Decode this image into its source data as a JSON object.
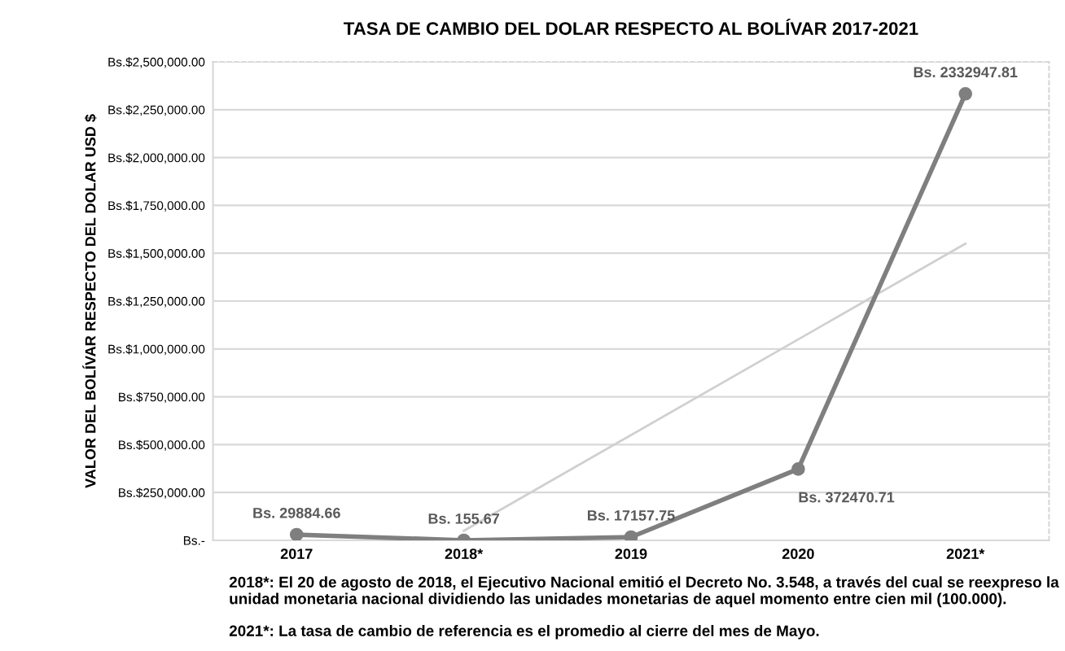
{
  "chart_data": {
    "type": "line",
    "title": "TASA DE CAMBIO DEL DOLAR RESPECTO AL BOLÍVAR 2017-2021",
    "ylabel": "VALOR DEL BOLÍVAR RESPECTO DEL DOLAR USD $",
    "categories": [
      "2017",
      "2018*",
      "2019",
      "2020",
      "2021*"
    ],
    "series": [
      {
        "color": "#7f7f7f",
        "values": [
          29884.66,
          155.67,
          17157.75,
          372470.71,
          2332947.81
        ],
        "value_labels": [
          "Bs. 29884.66",
          "Bs. 155.67",
          "Bs. 17157.75",
          "Bs. 372470.71",
          "Bs. 2332947.81"
        ],
        "marker": "circle"
      },
      {
        "type": "line",
        "color": "#d0d0d0",
        "x": [
          "2018*",
          "2021*"
        ],
        "values": [
          50000,
          1550000
        ],
        "marker": "none"
      }
    ],
    "ylim": [
      0,
      2500000
    ],
    "yticks": [
      {
        "value": 0,
        "label": "Bs.-"
      },
      {
        "value": 250000,
        "label": "Bs.$250,000.00"
      },
      {
        "value": 500000,
        "label": "Bs.$500,000.00"
      },
      {
        "value": 750000,
        "label": "Bs.$750,000.00"
      },
      {
        "value": 1000000,
        "label": "Bs.$1,000,000.00"
      },
      {
        "value": 1250000,
        "label": "Bs.$1,250,000.00"
      },
      {
        "value": 1500000,
        "label": "Bs.$1,500,000.00"
      },
      {
        "value": 1750000,
        "label": "Bs.$1,750,000.00"
      },
      {
        "value": 2000000,
        "label": "Bs.$2,000,000.00"
      },
      {
        "value": 2250000,
        "label": "Bs.$2,250,000.00"
      },
      {
        "value": 2500000,
        "label": "Bs.$2,500,000.00"
      }
    ],
    "grid": "y",
    "annotations": [
      "2018*: El 20 de agosto de 2018, el Ejecutivo Nacional emitió el Decreto No. 3.548, a través del cual se reexpreso la unidad monetaria nacional dividiendo las unidades monetarias de aquel momento entre cien mil (100.000).",
      "2021*: La tasa de cambio de referencia es el promedio al cierre del mes de Mayo."
    ]
  }
}
